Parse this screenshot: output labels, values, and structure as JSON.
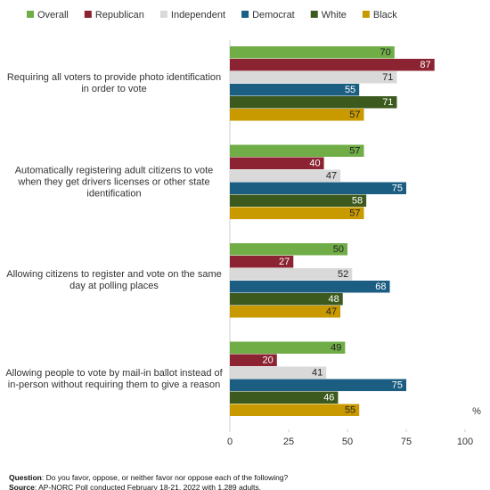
{
  "chart_data": {
    "type": "hbar",
    "categories": [
      "Requiring all voters to provide photo identification in order to vote",
      "Automatically registering adult citizens to vote when they get drivers licenses or other state identification",
      "Allowing citizens to register and vote on the same day at polling places",
      "Allowing people to vote by mail-in ballot instead of in-person without requiring them to give a reason"
    ],
    "series": [
      {
        "name": "Overall",
        "color": "#70ad47",
        "values": [
          70,
          57,
          50,
          49
        ]
      },
      {
        "name": "Republican",
        "color": "#8b2332",
        "values": [
          87,
          40,
          27,
          20
        ]
      },
      {
        "name": "Independent",
        "color": "#d9d9d9",
        "values": [
          71,
          47,
          52,
          41
        ]
      },
      {
        "name": "Democrat",
        "color": "#1b5e82",
        "values": [
          55,
          75,
          68,
          75
        ]
      },
      {
        "name": "White",
        "color": "#3d5a1e",
        "values": [
          71,
          58,
          48,
          46
        ]
      },
      {
        "name": "Black",
        "color": "#c99a00",
        "values": [
          57,
          57,
          47,
          55
        ]
      }
    ],
    "xlim": [
      0,
      100
    ],
    "xticks": [
      0,
      25,
      50,
      75,
      100
    ],
    "unit_label": "%"
  },
  "footer": {
    "question_label": "Question",
    "question": "Do you favor, oppose, or neither favor nor oppose each of the following?",
    "source_label": "Source",
    "source": "AP-NORC Poll conducted February 18-21, 2022 with 1,289 adults."
  }
}
